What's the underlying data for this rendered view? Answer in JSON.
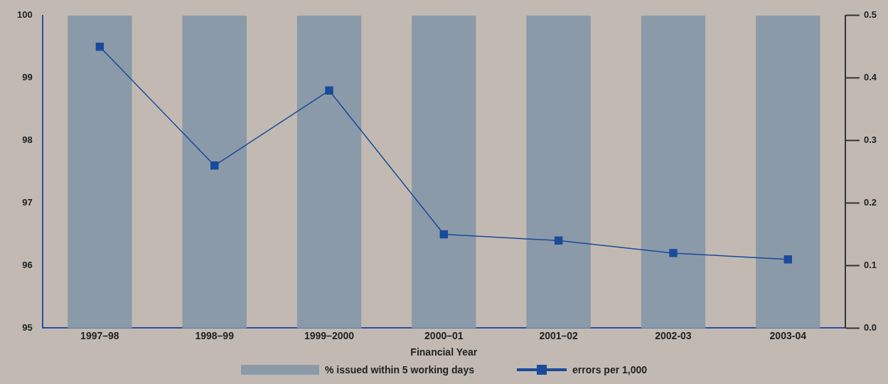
{
  "chart_data": {
    "type": "bar",
    "xlabel": "Financial Year",
    "categories": [
      "1997–98",
      "1998–99",
      "1999–2000",
      "2000–01",
      "2001–02",
      "2002-03",
      "2003-04"
    ],
    "series": [
      {
        "name": "% issued within 5 working days",
        "color": "#8a9aa8",
        "values": [
          100,
          100,
          100,
          100,
          100,
          100,
          100
        ]
      },
      {
        "name": "errors per 1,000",
        "type": "line",
        "axis": "y2",
        "color": "#1a4a9a",
        "marker": "square",
        "values": [
          0.45,
          0.26,
          0.38,
          0.15,
          0.14,
          0.12,
          0.11
        ]
      }
    ],
    "ylim": [
      95,
      100
    ],
    "yticks": [
      95,
      96,
      97,
      98,
      99,
      100
    ],
    "y2lim": [
      0,
      0.5
    ],
    "y2ticks": [
      {
        "value": 0,
        "label": "0.0"
      },
      0.1,
      0.2,
      0.3,
      0.4,
      0.5
    ],
    "grid": false,
    "legend": "bottom"
  }
}
